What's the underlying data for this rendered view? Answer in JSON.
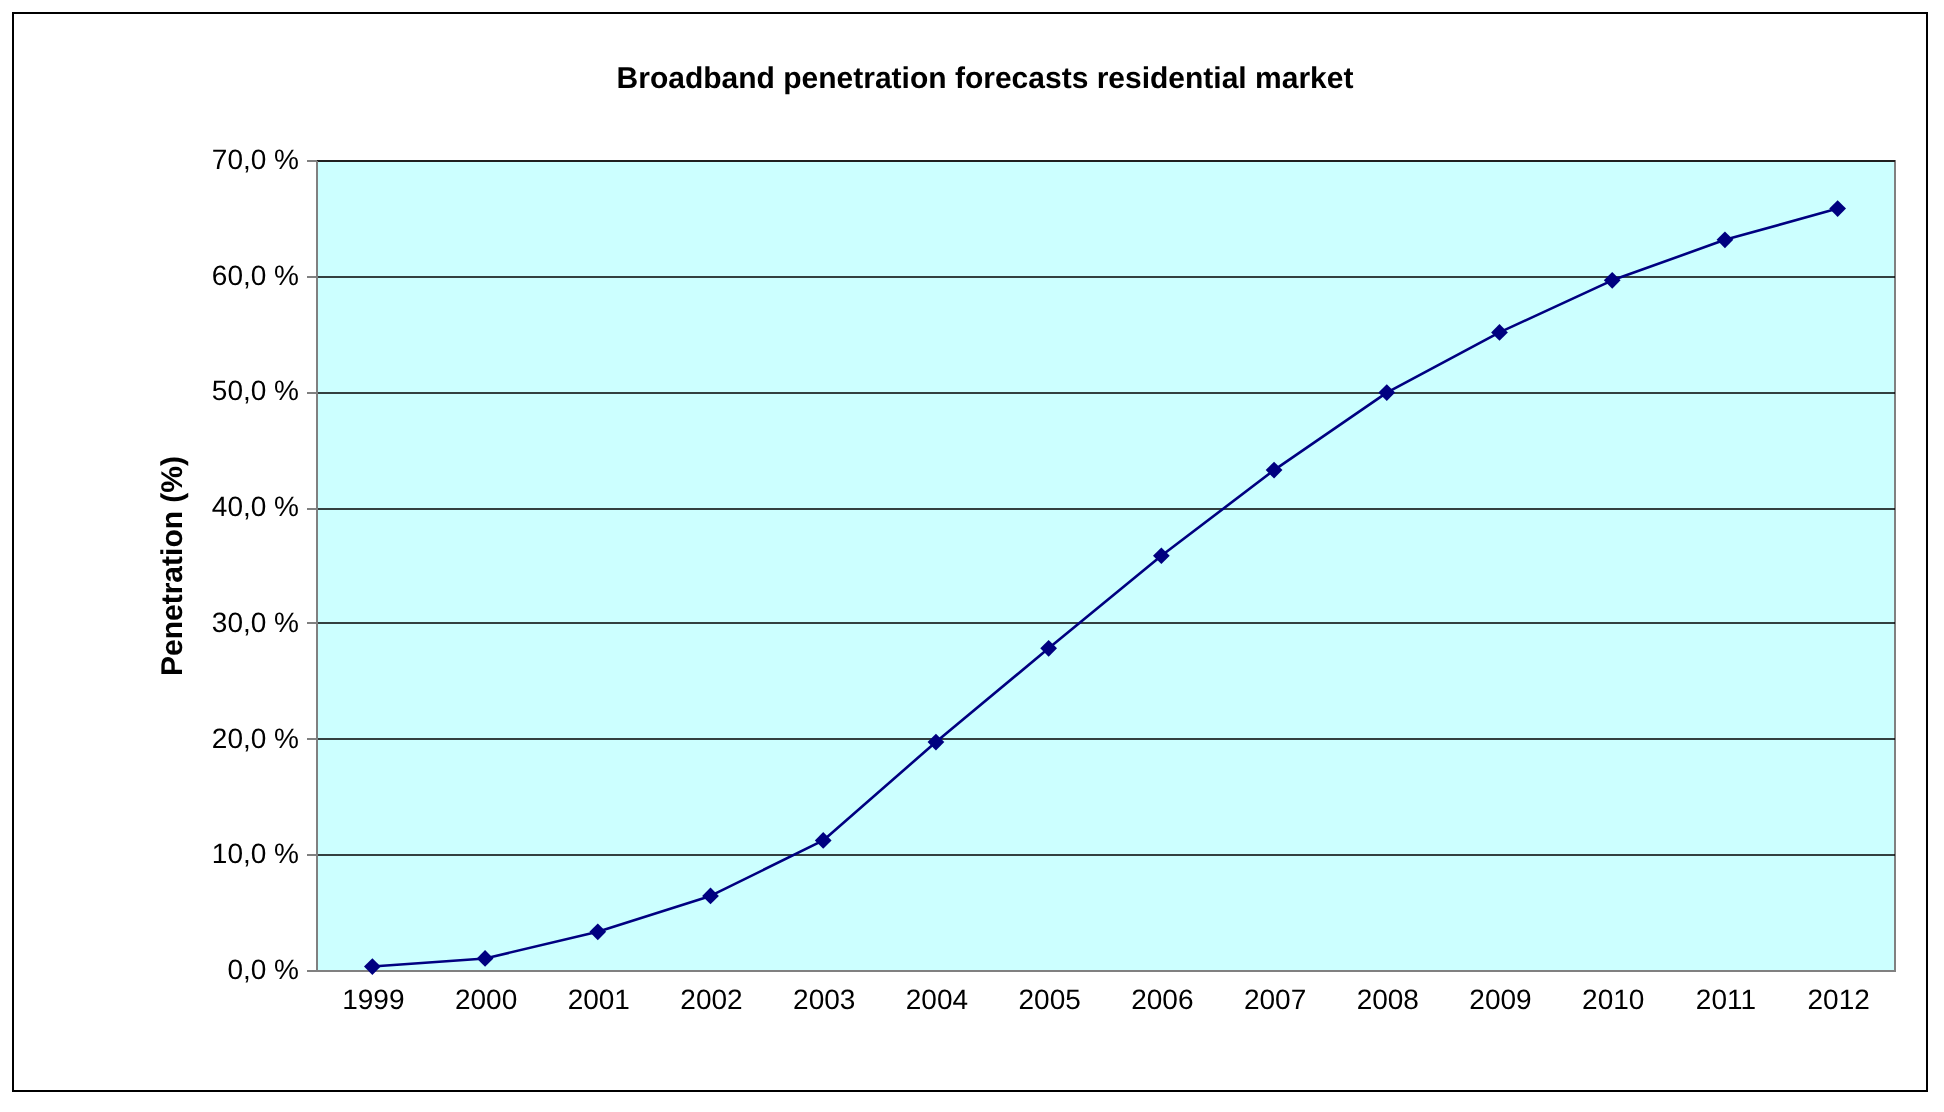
{
  "chart_data": {
    "type": "line",
    "title": "Broadband penetration forecasts residential market",
    "ylabel": "Penetration (%)",
    "categories": [
      "1999",
      "2000",
      "2001",
      "2002",
      "2003",
      "2004",
      "2005",
      "2006",
      "2007",
      "2008",
      "2009",
      "2010",
      "2011",
      "2012"
    ],
    "series": [
      {
        "color": "#000080",
        "values": [
          0.3,
          1.0,
          3.3,
          6.4,
          11.2,
          19.7,
          27.8,
          35.8,
          43.2,
          49.9,
          55.1,
          59.6,
          63.1,
          65.8
        ]
      }
    ],
    "ylim": [
      0,
      70
    ],
    "yticks": [
      {
        "value": 0,
        "label": "0,0 %"
      },
      {
        "value": 10,
        "label": "10,0 %"
      },
      {
        "value": 20,
        "label": "20,0 %"
      },
      {
        "value": 30,
        "label": "30,0 %"
      },
      {
        "value": 40,
        "label": "40,0 %"
      },
      {
        "value": 50,
        "label": "50,0 %"
      },
      {
        "value": 60,
        "label": "60,0 %"
      },
      {
        "value": 70,
        "label": "70,0 %"
      }
    ],
    "grid": "y",
    "marker": "diamond",
    "legend": false
  }
}
